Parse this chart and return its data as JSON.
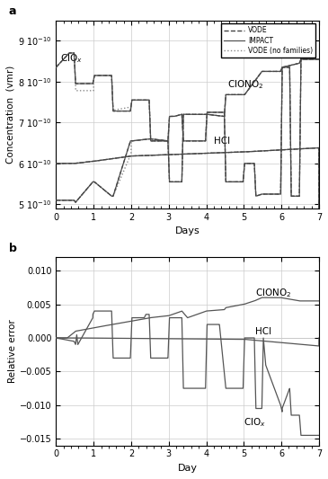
{
  "panel_a": {
    "ylabel": "Concentration  (vmr)",
    "xlabel": "Days",
    "xlim": [
      0,
      7
    ],
    "ylim": [
      4.9e-10,
      9.5e-10
    ],
    "yticks": [
      5e-10,
      6e-10,
      7e-10,
      8e-10,
      9e-10
    ],
    "xticks": [
      0,
      1,
      2,
      3,
      4,
      5,
      6,
      7
    ]
  },
  "panel_b": {
    "ylabel": "Relative error",
    "xlabel": "Day",
    "ylim": [
      -0.016,
      0.012
    ],
    "xlim": [
      0,
      7
    ],
    "yticks": [
      -0.015,
      -0.01,
      -0.005,
      0,
      0.005,
      0.01
    ],
    "xticks": [
      0,
      1,
      2,
      3,
      4,
      5,
      6,
      7
    ]
  },
  "legend_entries": [
    "VODE",
    "IMPACT",
    "VODE (no families)"
  ],
  "vode_color": "#444444",
  "impact_color": "#555555",
  "nofam_color": "#888888",
  "bg_color": "#ffffff",
  "grid_color": "#cccccc"
}
